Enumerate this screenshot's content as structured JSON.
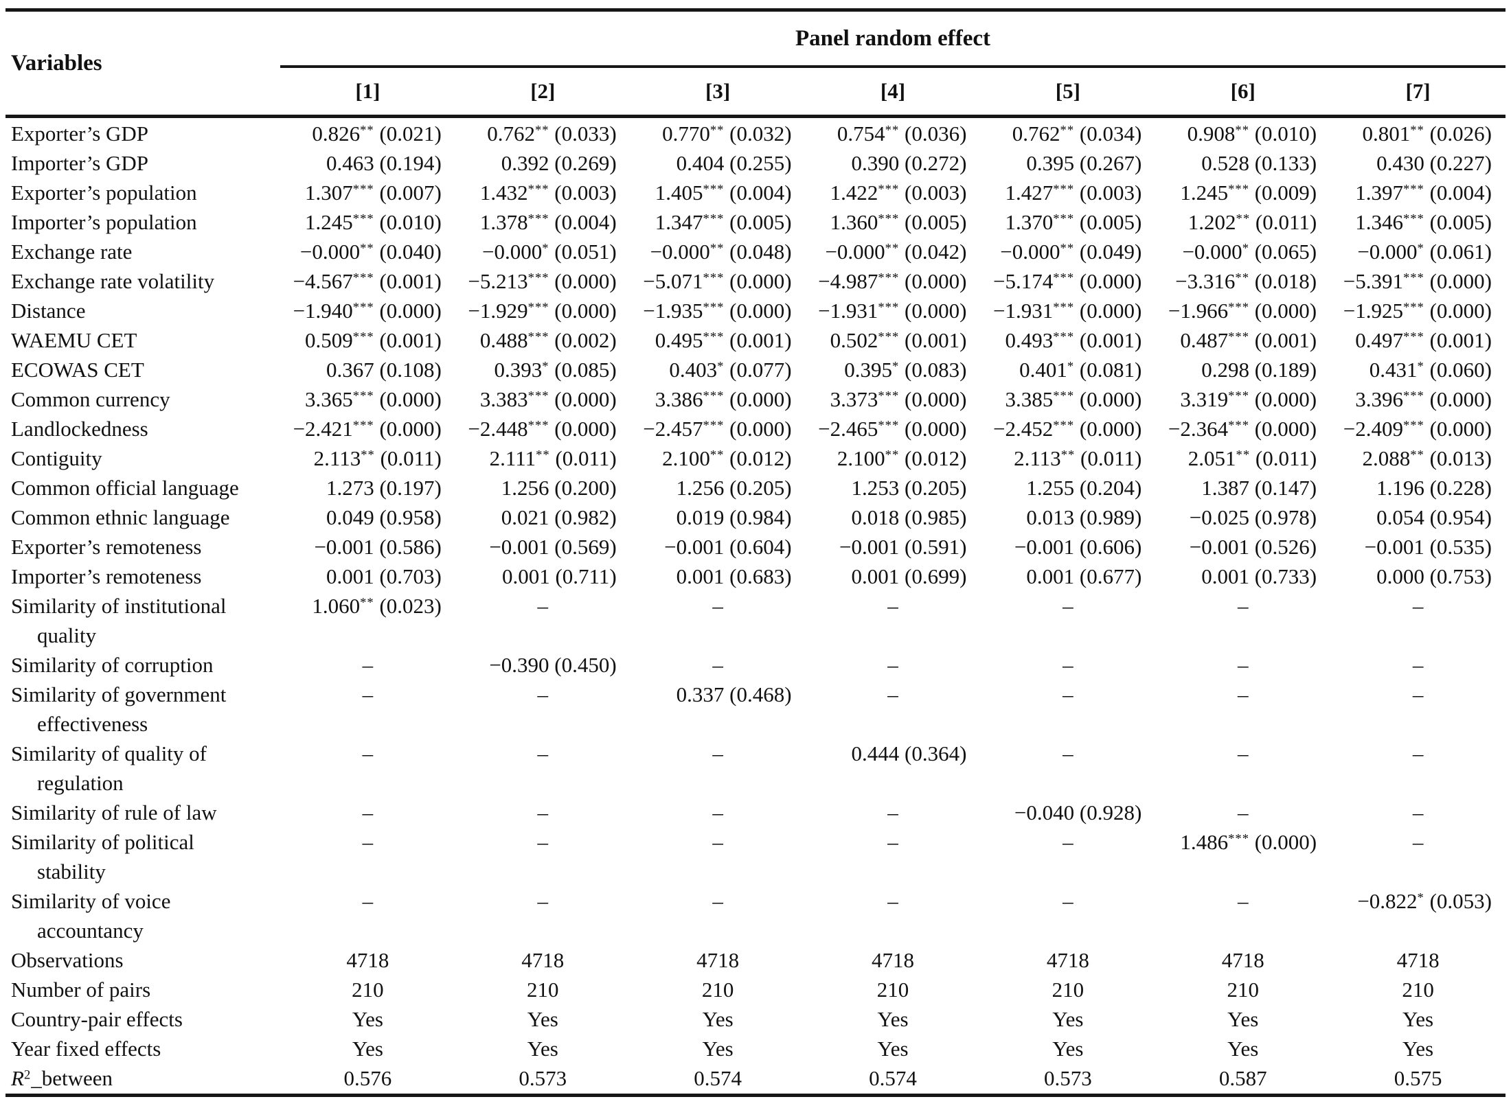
{
  "colors": {
    "background": "#ffffff",
    "text": "#111111",
    "rule": "#161616"
  },
  "table": {
    "corner_header": "Variables",
    "panel_header": "Panel random effect",
    "column_headers": [
      "[1]",
      "[2]",
      "[3]",
      "[4]",
      "[5]",
      "[6]",
      "[7]"
    ],
    "rows": [
      {
        "label_lines": [
          "Exporter’s GDP"
        ],
        "cells": [
          "0.826** (0.021)",
          "0.762** (0.033)",
          "0.770** (0.032)",
          "0.754** (0.036)",
          "0.762** (0.034)",
          "0.908** (0.010)",
          "0.801** (0.026)"
        ]
      },
      {
        "label_lines": [
          "Importer’s GDP"
        ],
        "cells": [
          "0.463 (0.194)",
          "0.392 (0.269)",
          "0.404 (0.255)",
          "0.390 (0.272)",
          "0.395 (0.267)",
          "0.528 (0.133)",
          "0.430 (0.227)"
        ]
      },
      {
        "label_lines": [
          "Exporter’s population"
        ],
        "cells": [
          "1.307*** (0.007)",
          "1.432*** (0.003)",
          "1.405*** (0.004)",
          "1.422*** (0.003)",
          "1.427*** (0.003)",
          "1.245*** (0.009)",
          "1.397*** (0.004)"
        ]
      },
      {
        "label_lines": [
          "Importer’s population"
        ],
        "cells": [
          "1.245*** (0.010)",
          "1.378*** (0.004)",
          "1.347*** (0.005)",
          "1.360*** (0.005)",
          "1.370*** (0.005)",
          "1.202** (0.011)",
          "1.346*** (0.005)"
        ]
      },
      {
        "label_lines": [
          "Exchange rate"
        ],
        "cells": [
          "−0.000** (0.040)",
          "−0.000* (0.051)",
          "−0.000** (0.048)",
          "−0.000** (0.042)",
          "−0.000** (0.049)",
          "−0.000* (0.065)",
          "−0.000* (0.061)"
        ]
      },
      {
        "label_lines": [
          "Exchange rate volatility"
        ],
        "cells": [
          "−4.567*** (0.001)",
          "−5.213*** (0.000)",
          "−5.071*** (0.000)",
          "−4.987*** (0.000)",
          "−5.174*** (0.000)",
          "−3.316** (0.018)",
          "−5.391*** (0.000)"
        ]
      },
      {
        "label_lines": [
          "Distance"
        ],
        "cells": [
          "−1.940*** (0.000)",
          "−1.929*** (0.000)",
          "−1.935*** (0.000)",
          "−1.931*** (0.000)",
          "−1.931*** (0.000)",
          "−1.966*** (0.000)",
          "−1.925*** (0.000)"
        ]
      },
      {
        "label_lines": [
          "WAEMU CET"
        ],
        "cells": [
          "0.509*** (0.001)",
          "0.488*** (0.002)",
          "0.495*** (0.001)",
          "0.502*** (0.001)",
          "0.493*** (0.001)",
          "0.487*** (0.001)",
          "0.497*** (0.001)"
        ]
      },
      {
        "label_lines": [
          "ECOWAS CET"
        ],
        "cells": [
          "0.367 (0.108)",
          "0.393* (0.085)",
          "0.403* (0.077)",
          "0.395* (0.083)",
          "0.401* (0.081)",
          "0.298 (0.189)",
          "0.431* (0.060)"
        ]
      },
      {
        "label_lines": [
          "Common currency"
        ],
        "cells": [
          "3.365*** (0.000)",
          "3.383*** (0.000)",
          "3.386*** (0.000)",
          "3.373*** (0.000)",
          "3.385*** (0.000)",
          "3.319*** (0.000)",
          "3.396*** (0.000)"
        ]
      },
      {
        "label_lines": [
          "Landlockedness"
        ],
        "cells": [
          "−2.421*** (0.000)",
          "−2.448*** (0.000)",
          "−2.457*** (0.000)",
          "−2.465*** (0.000)",
          "−2.452*** (0.000)",
          "−2.364*** (0.000)",
          "−2.409*** (0.000)"
        ]
      },
      {
        "label_lines": [
          "Contiguity"
        ],
        "cells": [
          "2.113** (0.011)",
          "2.111** (0.011)",
          "2.100** (0.012)",
          "2.100** (0.012)",
          "2.113** (0.011)",
          "2.051** (0.011)",
          "2.088** (0.013)"
        ]
      },
      {
        "label_lines": [
          "Common official language"
        ],
        "cells": [
          "1.273 (0.197)",
          "1.256 (0.200)",
          "1.256 (0.205)",
          "1.253 (0.205)",
          "1.255 (0.204)",
          "1.387 (0.147)",
          "1.196 (0.228)"
        ]
      },
      {
        "label_lines": [
          "Common ethnic language"
        ],
        "cells": [
          "0.049 (0.958)",
          "0.021 (0.982)",
          "0.019 (0.984)",
          "0.018 (0.985)",
          "0.013 (0.989)",
          "−0.025 (0.978)",
          "0.054 (0.954)"
        ]
      },
      {
        "label_lines": [
          "Exporter’s remoteness"
        ],
        "cells": [
          "−0.001 (0.586)",
          "−0.001 (0.569)",
          "−0.001 (0.604)",
          "−0.001 (0.591)",
          "−0.001 (0.606)",
          "−0.001 (0.526)",
          "−0.001 (0.535)"
        ]
      },
      {
        "label_lines": [
          "Importer’s remoteness"
        ],
        "cells": [
          "0.001 (0.703)",
          "0.001 (0.711)",
          "0.001 (0.683)",
          "0.001 (0.699)",
          "0.001 (0.677)",
          "0.001 (0.733)",
          "0.000 (0.753)"
        ]
      },
      {
        "label_lines": [
          "Similarity of institutional",
          "quality"
        ],
        "cells": [
          "1.060** (0.023)",
          "–",
          "–",
          "–",
          "–",
          "–",
          "–"
        ]
      },
      {
        "label_lines": [
          "Similarity of corruption"
        ],
        "cells": [
          "–",
          "−0.390 (0.450)",
          "–",
          "–",
          "–",
          "–",
          "–"
        ]
      },
      {
        "label_lines": [
          "Similarity of government",
          "effectiveness"
        ],
        "cells": [
          "–",
          "–",
          "0.337 (0.468)",
          "–",
          "–",
          "–",
          "–"
        ]
      },
      {
        "label_lines": [
          "Similarity of quality of",
          "regulation"
        ],
        "cells": [
          "–",
          "–",
          "–",
          "0.444 (0.364)",
          "–",
          "–",
          "–"
        ]
      },
      {
        "label_lines": [
          "Similarity of rule of law"
        ],
        "cells": [
          "–",
          "–",
          "–",
          "–",
          "−0.040 (0.928)",
          "–",
          "–"
        ]
      },
      {
        "label_lines": [
          "Similarity of political",
          "stability"
        ],
        "cells": [
          "–",
          "–",
          "–",
          "–",
          "–",
          "1.486*** (0.000)",
          "–"
        ]
      },
      {
        "label_lines": [
          "Similarity of voice",
          "accountancy"
        ],
        "cells": [
          "–",
          "–",
          "–",
          "–",
          "–",
          "–",
          "−0.822* (0.053)"
        ]
      },
      {
        "label_lines": [
          "Observations"
        ],
        "cells": [
          "4718",
          "4718",
          "4718",
          "4718",
          "4718",
          "4718",
          "4718"
        ]
      },
      {
        "label_lines": [
          "Number of pairs"
        ],
        "cells": [
          "210",
          "210",
          "210",
          "210",
          "210",
          "210",
          "210"
        ]
      },
      {
        "label_lines": [
          "Country-pair effects"
        ],
        "cells": [
          "Yes",
          "Yes",
          "Yes",
          "Yes",
          "Yes",
          "Yes",
          "Yes"
        ]
      },
      {
        "label_lines": [
          "Year fixed effects"
        ],
        "cells": [
          "Yes",
          "Yes",
          "Yes",
          "Yes",
          "Yes",
          "Yes",
          "Yes"
        ]
      },
      {
        "label_lines": [
          "R²_between"
        ],
        "math_label": true,
        "cells": [
          "0.576",
          "0.573",
          "0.574",
          "0.574",
          "0.573",
          "0.587",
          "0.575"
        ]
      }
    ]
  }
}
